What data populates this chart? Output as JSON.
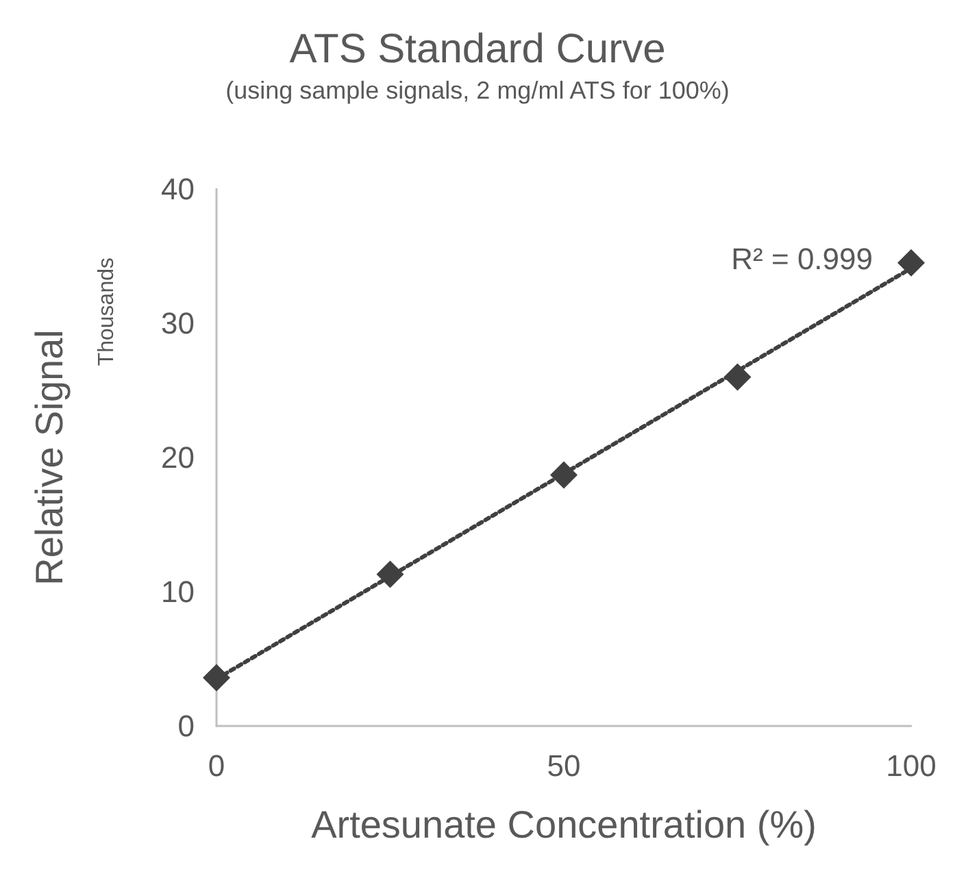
{
  "chart_data": {
    "type": "scatter",
    "title": "ATS Standard Curve",
    "subtitle": "(using sample signals, 2 mg/ml ATS for 100%)",
    "xlabel": "Artesunate Concentration (%)",
    "ylabel": "Relative Signal",
    "annotations": [
      "Thousands",
      "R² = 0.999"
    ],
    "x": [
      0,
      25,
      50,
      75,
      100
    ],
    "series": [
      {
        "color": "#404040",
        "values": [
          3.6,
          11.3,
          18.7,
          26.0,
          34.5
        ],
        "marker": "diamond"
      },
      {
        "type": "line",
        "color": "#404040",
        "x": [
          0,
          100
        ],
        "values": [
          3.5,
          34.1
        ],
        "line_style": "dotted",
        "marker": "none"
      }
    ],
    "xlim": [
      0,
      100
    ],
    "xticks": [
      0,
      50,
      100
    ],
    "ylim": [
      0,
      40
    ],
    "yticks": [
      0,
      10,
      20,
      30,
      40
    ],
    "grid": false
  }
}
